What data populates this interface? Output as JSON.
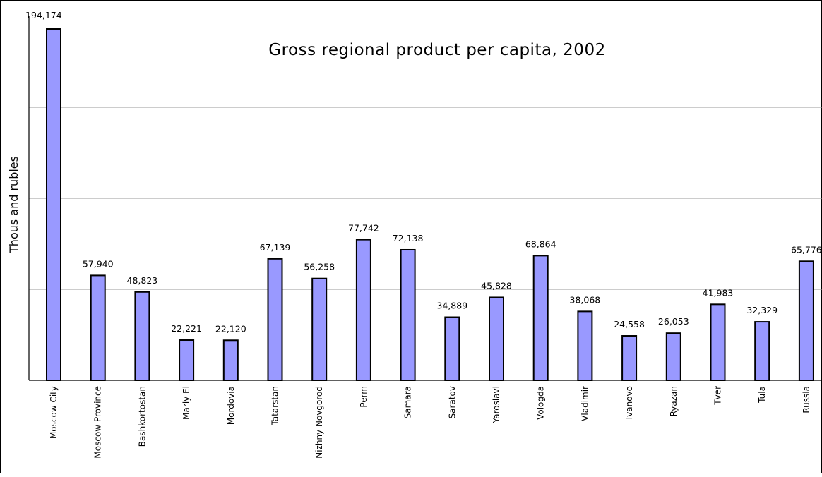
{
  "chart_data": {
    "type": "bar",
    "title": "Gross regional product per capita, 2002",
    "ylabel": "Thous and rubles",
    "xlabel": "",
    "ylim": [
      0,
      194174
    ],
    "grid": true,
    "legend": "none",
    "bar_color": "#9999ff",
    "categories": [
      "Moscow City",
      "Moscow Province",
      "Bashkortostan",
      "Mariy El",
      "Mordovia",
      "Tatarstan",
      "Nizhny Novgorod",
      "Perm",
      "Samara",
      "Saratov",
      "Yaroslavl",
      "Vologda",
      "Vladimir",
      "Ivanovo",
      "Ryazan",
      "Tver",
      "Tula",
      "Russia"
    ],
    "values": [
      194174,
      57940,
      48823,
      22221,
      22120,
      67139,
      56258,
      77742,
      72138,
      34889,
      45828,
      68864,
      38068,
      24558,
      26053,
      41983,
      32329,
      65776
    ],
    "value_labels": [
      "194,174",
      "57,940",
      "48,823",
      "22,221",
      "22,120",
      "67,139",
      "56,258",
      "77,742",
      "72,138",
      "34,889",
      "45,828",
      "68,864",
      "38,068",
      "24,558",
      "26,053",
      "41,983",
      "32,329",
      "65,776"
    ]
  }
}
